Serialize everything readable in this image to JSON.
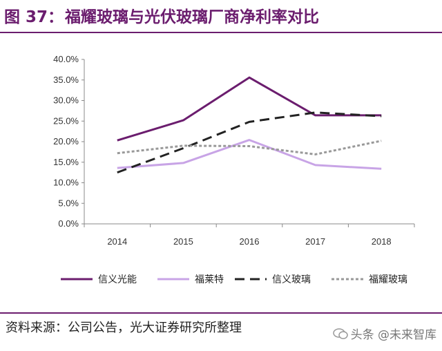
{
  "header": {
    "figure_label": "图 37：",
    "title": "福耀玻璃与光伏玻璃厂商净利率对比"
  },
  "footer": {
    "source": "资料来源：公司公告，光大证券研究所整理",
    "watermark": "头条 @未来智库"
  },
  "colors": {
    "accent": "#6b1d6e",
    "series": [
      "#6b1d6e",
      "#c8a4e6",
      "#222222",
      "#999999"
    ]
  },
  "chart_data": {
    "type": "line",
    "categories": [
      "2014",
      "2015",
      "2016",
      "2017",
      "2018"
    ],
    "y_ticks": [
      "0.0%",
      "5.0%",
      "10.0%",
      "15.0%",
      "20.0%",
      "25.0%",
      "30.0%",
      "35.0%",
      "40.0%"
    ],
    "ylim": [
      0,
      40
    ],
    "grid": false,
    "legend_position": "bottom",
    "series": [
      {
        "name": "信义光能",
        "values": [
          20.3,
          25.2,
          35.6,
          26.4,
          26.4
        ],
        "style": "solid",
        "color": "#6b1d6e"
      },
      {
        "name": "福莱特",
        "values": [
          13.6,
          14.8,
          20.4,
          14.3,
          13.4
        ],
        "style": "solid",
        "color": "#c8a4e6"
      },
      {
        "name": "信义玻璃",
        "values": [
          12.5,
          18.4,
          24.8,
          27.1,
          26.2
        ],
        "style": "dashed",
        "color": "#222222"
      },
      {
        "name": "福耀玻璃",
        "values": [
          17.2,
          19.0,
          18.9,
          16.9,
          20.2
        ],
        "style": "dotted",
        "color": "#999999"
      }
    ]
  }
}
